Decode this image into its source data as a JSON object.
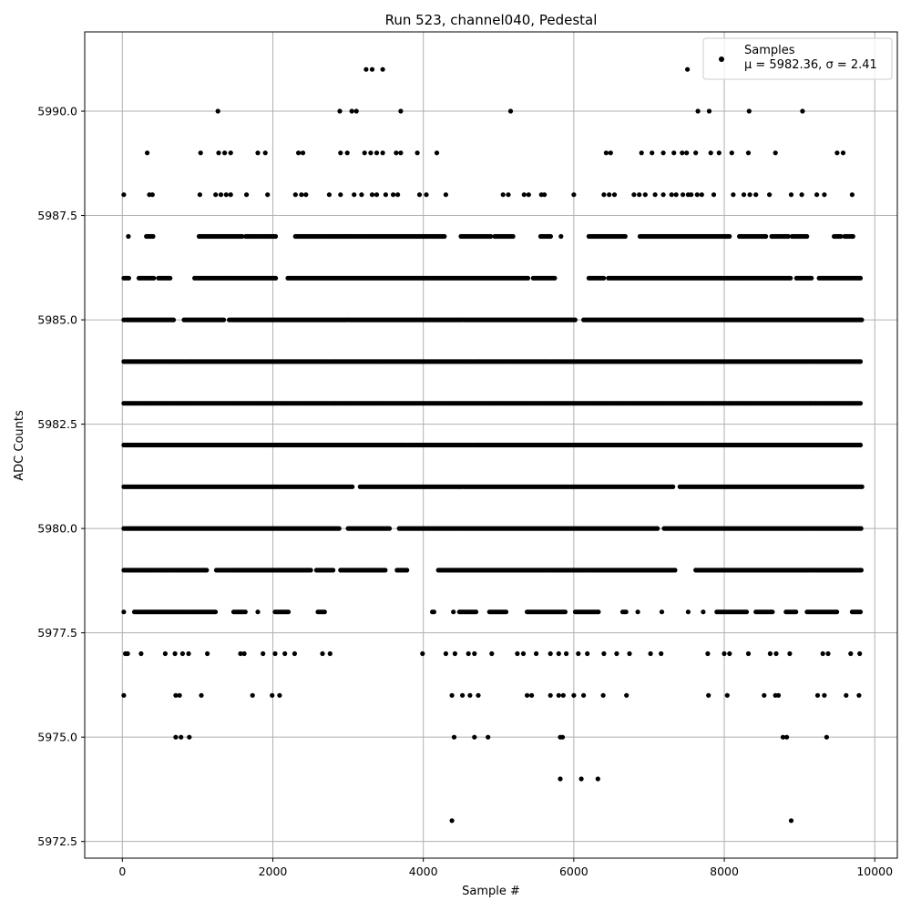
{
  "chart_data": {
    "type": "scatter",
    "title": "Run 523, channel040, Pedestal",
    "xlabel": "Sample #",
    "ylabel": "ADC Counts",
    "xlim": [
      -500,
      10300
    ],
    "ylim": [
      5972.1,
      5991.9
    ],
    "xticks": [
      0,
      2000,
      4000,
      6000,
      8000,
      10000
    ],
    "yticks": [
      5972.5,
      5975.0,
      5977.5,
      5980.0,
      5982.5,
      5985.0,
      5987.5,
      5990.0
    ],
    "xtick_labels": [
      "0",
      "2000",
      "4000",
      "6000",
      "8000",
      "10000"
    ],
    "ytick_labels": [
      "5972.5",
      "5975.0",
      "5977.5",
      "5980.0",
      "5982.5",
      "5985.0",
      "5987.5",
      "5990.0"
    ],
    "grid": true,
    "legend_position": "top-right",
    "marker_color": "#000000",
    "series": [
      {
        "name": "Samples",
        "stats_label": "μ = 5982.36, σ = 2.41",
        "level_fill": [
          {
            "y": 5973,
            "x": [
              4380,
              8890
            ]
          },
          {
            "y": 5974,
            "x": [
              5820,
              6100,
              6320
            ]
          },
          {
            "y": 5975,
            "x": [
              710,
              780,
              890,
              4410,
              4680,
              4860,
              5820,
              5850,
              8780,
              8830,
              9360
            ]
          },
          {
            "y": 5976,
            "x": [
              20,
              710,
              760,
              1050,
              1730,
              1990,
              2090,
              4380,
              4520,
              4620,
              4730,
              5380,
              5440,
              5690,
              5800,
              5860,
              6000,
              6130,
              6390,
              6700,
              7790,
              8040,
              8530,
              8680,
              8720,
              9240,
              9330,
              9620,
              9790
            ]
          },
          {
            "y": 5977,
            "x": [
              40,
              70,
              250,
              570,
              700,
              800,
              880,
              1130,
              1570,
              1620,
              1870,
              2030,
              2160,
              2290,
              2660,
              2760,
              3990,
              4300,
              4420,
              4600,
              4680,
              4910,
              5250,
              5330,
              5500,
              5690,
              5800,
              5900,
              6060,
              6180,
              6400,
              6570,
              6740,
              7020,
              7160,
              7780,
              8000,
              8070,
              8320,
              8610,
              8690,
              8870,
              9310,
              9380,
              9680,
              9800
            ]
          }
        ],
        "level_dense": [
          {
            "y": 5978,
            "spans": [
              [
                20,
                20
              ],
              [
                160,
                1250
              ],
              [
                1480,
                1650
              ],
              [
                1800,
                1800
              ],
              [
                2030,
                2220
              ],
              [
                2600,
                2700
              ],
              [
                4120,
                4160
              ],
              [
                4400,
                4400
              ],
              [
                4480,
                4710
              ],
              [
                4880,
                5100
              ],
              [
                5380,
                5900
              ],
              [
                6020,
                6340
              ],
              [
                6650,
                6700
              ],
              [
                6850,
                6850
              ],
              [
                7170,
                7170
              ],
              [
                7520,
                7520
              ],
              [
                7720,
                7720
              ],
              [
                7900,
                8300
              ],
              [
                8420,
                8660
              ],
              [
                8820,
                8960
              ],
              [
                9100,
                9500
              ],
              [
                9700,
                9830
              ]
            ]
          },
          {
            "y": 5979,
            "spans": [
              [
                20,
                1140
              ],
              [
                1250,
                2520
              ],
              [
                2580,
                2820
              ],
              [
                2900,
                3500
              ],
              [
                3650,
                3800
              ],
              [
                4200,
                7350
              ],
              [
                7620,
                9830
              ]
            ]
          },
          {
            "y": 5980,
            "spans": [
              [
                20,
                2900
              ],
              [
                3000,
                3550
              ],
              [
                3680,
                7120
              ],
              [
                7200,
                9830
              ]
            ]
          },
          {
            "y": 5981,
            "spans": [
              [
                20,
                3060
              ],
              [
                3160,
                7330
              ],
              [
                7410,
                9830
              ]
            ]
          },
          {
            "y": 5982,
            "spans": [
              [
                20,
                9830
              ]
            ]
          },
          {
            "y": 5983,
            "spans": [
              [
                20,
                9830
              ]
            ]
          },
          {
            "y": 5984,
            "spans": [
              [
                20,
                9830
              ]
            ]
          },
          {
            "y": 5985,
            "spans": [
              [
                20,
                700
              ],
              [
                820,
                1360
              ],
              [
                1420,
                6030
              ],
              [
                6130,
                9830
              ]
            ]
          },
          {
            "y": 5986,
            "spans": [
              [
                20,
                100
              ],
              [
                220,
                420
              ],
              [
                480,
                650
              ],
              [
                960,
                2050
              ],
              [
                2200,
                5400
              ],
              [
                5460,
                5760
              ],
              [
                6200,
                6400
              ],
              [
                6460,
                8900
              ],
              [
                8960,
                9160
              ],
              [
                9260,
                9830
              ]
            ]
          },
          {
            "y": 5987,
            "spans": [
              [
                80,
                80
              ],
              [
                320,
                420
              ],
              [
                1020,
                1600
              ],
              [
                1640,
                2050
              ],
              [
                2300,
                4280
              ],
              [
                4500,
                4900
              ],
              [
                4950,
                5200
              ],
              [
                5560,
                5700
              ],
              [
                5830,
                5830
              ],
              [
                6200,
                6690
              ],
              [
                6880,
                8080
              ],
              [
                8200,
                8560
              ],
              [
                8630,
                8850
              ],
              [
                8900,
                9100
              ],
              [
                9460,
                9560
              ],
              [
                9600,
                9730
              ]
            ]
          }
        ],
        "level_sparse": [
          {
            "y": 5988,
            "x": [
              20,
              360,
              400,
              1030,
              1240,
              1310,
              1380,
              1440,
              1650,
              1930,
              2300,
              2380,
              2440,
              2750,
              2900,
              3080,
              3180,
              3320,
              3380,
              3500,
              3600,
              3660,
              3950,
              4040,
              4300,
              5060,
              5130,
              5340,
              5400,
              5570,
              5610,
              6000,
              6400,
              6470,
              6540,
              6800,
              6870,
              6950,
              7080,
              7190,
              7300,
              7360,
              7450,
              7520,
              7560,
              7640,
              7700,
              7860,
              8120,
              8260,
              8340,
              8420,
              8600,
              8890,
              9030,
              9230,
              9330,
              9700
            ]
          },
          {
            "y": 5989,
            "x": [
              330,
              1040,
              1280,
              1360,
              1440,
              1800,
              1900,
              2340,
              2400,
              2900,
              2990,
              3220,
              3300,
              3380,
              3460,
              3640,
              3700,
              3920,
              4180,
              6430,
              6490,
              6900,
              7040,
              7190,
              7330,
              7440,
              7500,
              7620,
              7820,
              7930,
              8100,
              8320,
              8680,
              9500,
              9580
            ]
          },
          {
            "y": 5990,
            "x": [
              1270,
              2890,
              3050,
              3110,
              3700,
              5160,
              7650,
              7800,
              8330,
              9040
            ]
          },
          {
            "y": 5991,
            "x": [
              3240,
              3320,
              3460,
              7510
            ]
          }
        ]
      }
    ]
  }
}
